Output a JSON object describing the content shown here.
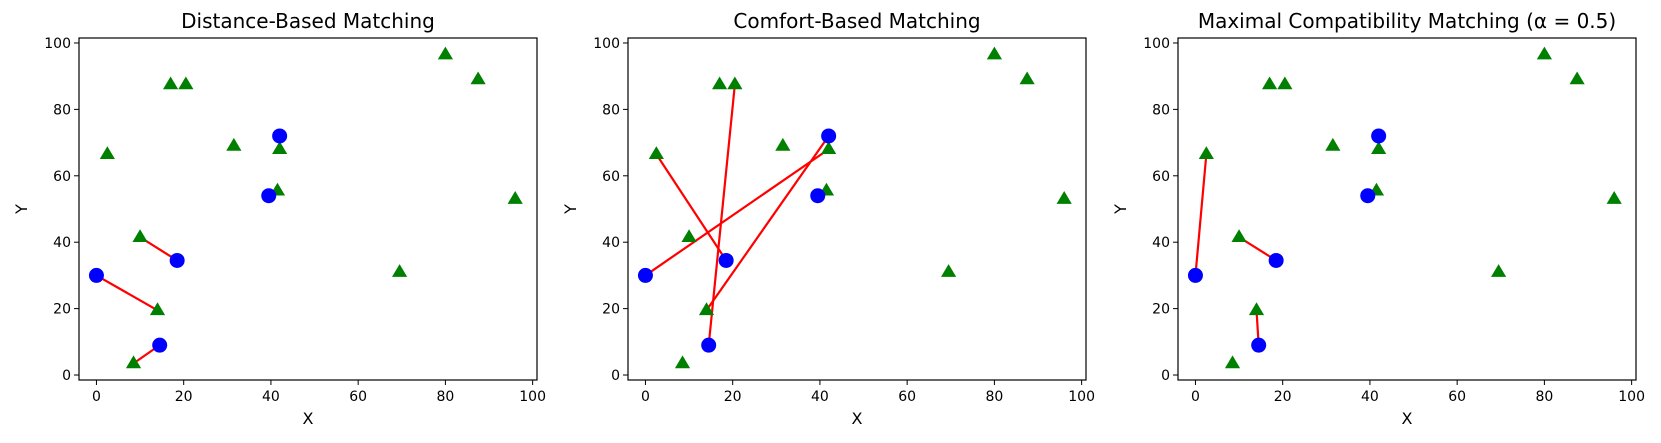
{
  "colors": {
    "person": "#0000ff",
    "venue": "#008000",
    "match_line": "#ff0000",
    "axes": "#000000"
  },
  "chart_data": [
    {
      "type": "scatter",
      "title": "Distance-Based Matching",
      "xlabel": "X",
      "ylabel": "Y",
      "xlim": [
        -4,
        101
      ],
      "ylim": [
        -1.5,
        101.5
      ],
      "xticks": [
        0,
        20,
        40,
        60,
        80,
        100
      ],
      "yticks": [
        0,
        20,
        40,
        60,
        80,
        100
      ],
      "grid": false,
      "people": [
        [
          0,
          30
        ],
        [
          14.5,
          9
        ],
        [
          18.5,
          34.5
        ],
        [
          39.5,
          54
        ],
        [
          42,
          72
        ]
      ],
      "venues": [
        [
          2.5,
          66.5
        ],
        [
          8.5,
          3.5
        ],
        [
          10,
          41.5
        ],
        [
          14,
          19.5
        ],
        [
          17,
          87.5
        ],
        [
          20.5,
          87.5
        ],
        [
          31.5,
          69
        ],
        [
          41.5,
          55.5
        ],
        [
          42,
          68
        ],
        [
          69.5,
          31
        ],
        [
          80,
          96.5
        ],
        [
          87.5,
          89
        ],
        [
          96,
          53
        ]
      ],
      "matches": [
        [
          [
            0,
            30
          ],
          [
            14,
            19.5
          ]
        ],
        [
          [
            14.5,
            9
          ],
          [
            8.5,
            3.5
          ]
        ],
        [
          [
            18.5,
            34.5
          ],
          [
            10,
            41.5
          ]
        ],
        [
          [
            39.5,
            54
          ],
          [
            41.5,
            55.5
          ]
        ],
        [
          [
            42,
            72
          ],
          [
            42,
            68
          ]
        ]
      ]
    },
    {
      "type": "scatter",
      "title": "Comfort-Based Matching",
      "xlabel": "X",
      "ylabel": "Y",
      "xlim": [
        -4,
        101
      ],
      "ylim": [
        -1.5,
        101.5
      ],
      "xticks": [
        0,
        20,
        40,
        60,
        80,
        100
      ],
      "yticks": [
        0,
        20,
        40,
        60,
        80,
        100
      ],
      "grid": false,
      "people": [
        [
          0,
          30
        ],
        [
          14.5,
          9
        ],
        [
          18.5,
          34.5
        ],
        [
          39.5,
          54
        ],
        [
          42,
          72
        ]
      ],
      "venues": [
        [
          2.5,
          66.5
        ],
        [
          8.5,
          3.5
        ],
        [
          10,
          41.5
        ],
        [
          14,
          19.5
        ],
        [
          17,
          87.5
        ],
        [
          20.5,
          87.5
        ],
        [
          31.5,
          69
        ],
        [
          41.5,
          55.5
        ],
        [
          42,
          68
        ],
        [
          69.5,
          31
        ],
        [
          80,
          96.5
        ],
        [
          87.5,
          89
        ],
        [
          96,
          53
        ]
      ],
      "matches": [
        [
          [
            0,
            30
          ],
          [
            42,
            68
          ]
        ],
        [
          [
            14.5,
            9
          ],
          [
            20.5,
            87.5
          ]
        ],
        [
          [
            18.5,
            34.5
          ],
          [
            2.5,
            66.5
          ]
        ],
        [
          [
            39.5,
            54
          ],
          [
            41.5,
            55.5
          ]
        ],
        [
          [
            42,
            72
          ],
          [
            14,
            19.5
          ]
        ]
      ]
    },
    {
      "type": "scatter",
      "title": "Maximal Compatibility Matching (α = 0.5)",
      "xlabel": "X",
      "ylabel": "Y",
      "xlim": [
        -4,
        101
      ],
      "ylim": [
        -1.5,
        101.5
      ],
      "xticks": [
        0,
        20,
        40,
        60,
        80,
        100
      ],
      "yticks": [
        0,
        20,
        40,
        60,
        80,
        100
      ],
      "grid": false,
      "people": [
        [
          0,
          30
        ],
        [
          14.5,
          9
        ],
        [
          18.5,
          34.5
        ],
        [
          39.5,
          54
        ],
        [
          42,
          72
        ]
      ],
      "venues": [
        [
          2.5,
          66.5
        ],
        [
          8.5,
          3.5
        ],
        [
          10,
          41.5
        ],
        [
          14,
          19.5
        ],
        [
          17,
          87.5
        ],
        [
          20.5,
          87.5
        ],
        [
          31.5,
          69
        ],
        [
          41.5,
          55.5
        ],
        [
          42,
          68
        ],
        [
          69.5,
          31
        ],
        [
          80,
          96.5
        ],
        [
          87.5,
          89
        ],
        [
          96,
          53
        ]
      ],
      "matches": [
        [
          [
            0,
            30
          ],
          [
            2.5,
            66.5
          ]
        ],
        [
          [
            14.5,
            9
          ],
          [
            14,
            19.5
          ]
        ],
        [
          [
            18.5,
            34.5
          ],
          [
            10,
            41.5
          ]
        ],
        [
          [
            39.5,
            54
          ],
          [
            41.5,
            55.5
          ]
        ],
        [
          [
            42,
            72
          ],
          [
            42,
            68
          ]
        ]
      ]
    }
  ]
}
